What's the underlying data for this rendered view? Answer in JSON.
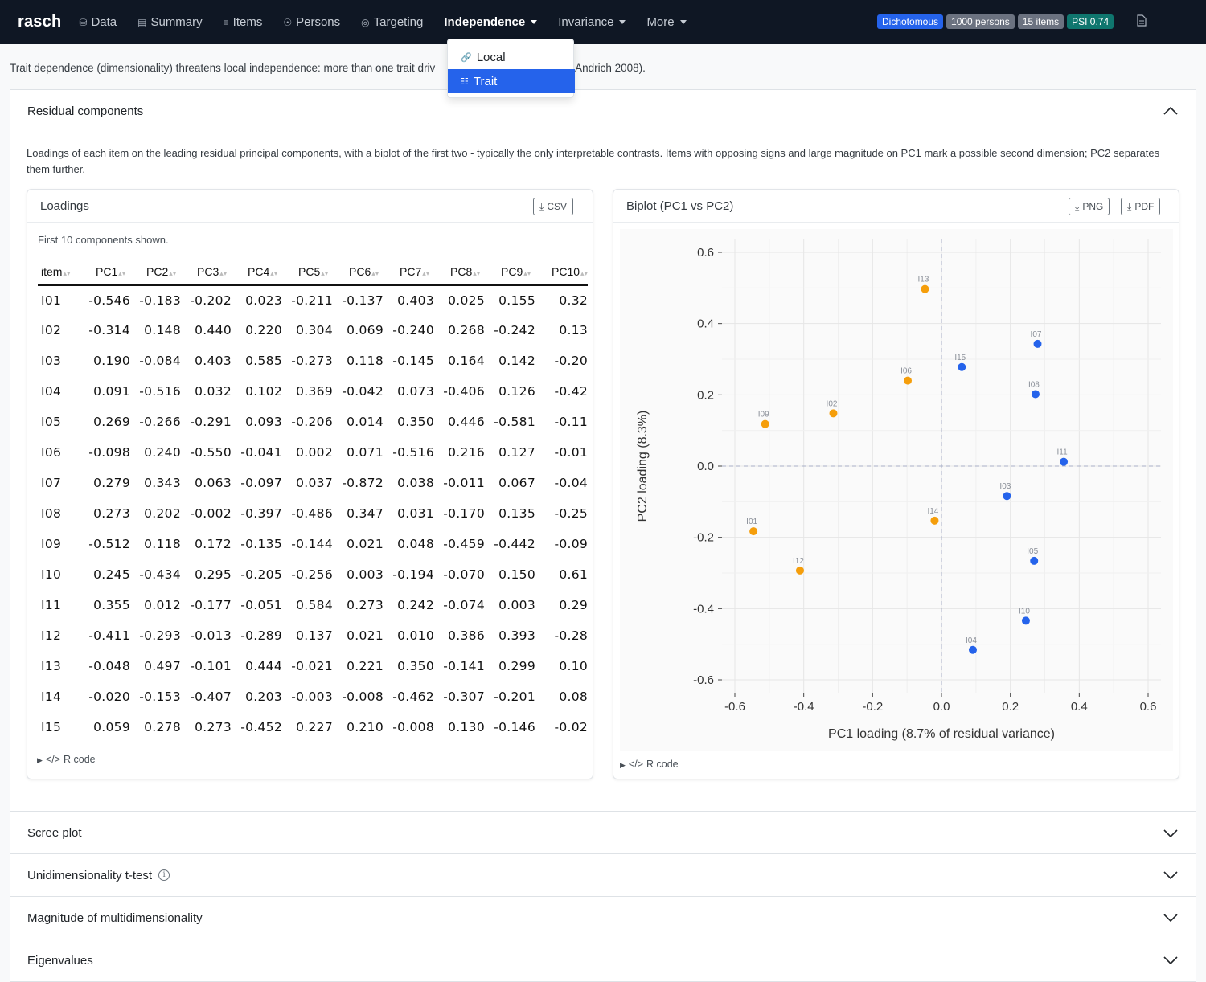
{
  "nav": {
    "brand": "rasch",
    "items": [
      {
        "label": "Data",
        "icon": "database-icon"
      },
      {
        "label": "Summary",
        "icon": "clipboard-icon"
      },
      {
        "label": "Items",
        "icon": "list-icon"
      },
      {
        "label": "Persons",
        "icon": "people-icon"
      },
      {
        "label": "Targeting",
        "icon": "target-icon"
      },
      {
        "label": "Independence",
        "active": true
      },
      {
        "label": "Invariance"
      },
      {
        "label": "More"
      }
    ],
    "badges": [
      {
        "label": "Dichotomous",
        "color": "#2563eb"
      },
      {
        "label": "1000 persons",
        "color": "#6b7280"
      },
      {
        "label": "15 items",
        "color": "#6b7280"
      },
      {
        "label": "PSI 0.74",
        "color": "#0f766e"
      }
    ]
  },
  "dropdown": {
    "items": [
      {
        "label": "Local",
        "icon": "link-icon",
        "selected": false
      },
      {
        "label": "Trait",
        "icon": "diagram-icon",
        "selected": true
      }
    ]
  },
  "intro": {
    "before": "Trait dependence (dimensionality) threatens local independence: more than one trait driv",
    "after": " & Andrich 2008)."
  },
  "residual": {
    "title": "Residual components",
    "description": "Loadings of each item on the leading residual principal components, with a biplot of the first two - typically the only interpretable contrasts. Items with opposing signs and large magnitude on PC1 mark a possible second dimension; PC2 separates them further.",
    "loadings": {
      "title": "Loadings",
      "csv_label": "CSV",
      "note": "First 10 components shown.",
      "columns": [
        "item",
        "PC1",
        "PC2",
        "PC3",
        "PC4",
        "PC5",
        "PC6",
        "PC7",
        "PC8",
        "PC9",
        "PC10"
      ],
      "rows": [
        [
          "I01",
          "-0.546",
          "-0.183",
          "-0.202",
          "0.023",
          "-0.211",
          "-0.137",
          "0.403",
          "0.025",
          "0.155",
          "0.32"
        ],
        [
          "I02",
          "-0.314",
          "0.148",
          "0.440",
          "0.220",
          "0.304",
          "0.069",
          "-0.240",
          "0.268",
          "-0.242",
          "0.13"
        ],
        [
          "I03",
          "0.190",
          "-0.084",
          "0.403",
          "0.585",
          "-0.273",
          "0.118",
          "-0.145",
          "0.164",
          "0.142",
          "-0.20"
        ],
        [
          "I04",
          "0.091",
          "-0.516",
          "0.032",
          "0.102",
          "0.369",
          "-0.042",
          "0.073",
          "-0.406",
          "0.126",
          "-0.42"
        ],
        [
          "I05",
          "0.269",
          "-0.266",
          "-0.291",
          "0.093",
          "-0.206",
          "0.014",
          "0.350",
          "0.446",
          "-0.581",
          "-0.11"
        ],
        [
          "I06",
          "-0.098",
          "0.240",
          "-0.550",
          "-0.041",
          "0.002",
          "0.071",
          "-0.516",
          "0.216",
          "0.127",
          "-0.01"
        ],
        [
          "I07",
          "0.279",
          "0.343",
          "0.063",
          "-0.097",
          "0.037",
          "-0.872",
          "0.038",
          "-0.011",
          "0.067",
          "-0.04"
        ],
        [
          "I08",
          "0.273",
          "0.202",
          "-0.002",
          "-0.397",
          "-0.486",
          "0.347",
          "0.031",
          "-0.170",
          "0.135",
          "-0.25"
        ],
        [
          "I09",
          "-0.512",
          "0.118",
          "0.172",
          "-0.135",
          "-0.144",
          "0.021",
          "0.048",
          "-0.459",
          "-0.442",
          "-0.09"
        ],
        [
          "I10",
          "0.245",
          "-0.434",
          "0.295",
          "-0.205",
          "-0.256",
          "0.003",
          "-0.194",
          "-0.070",
          "0.150",
          "0.61"
        ],
        [
          "I11",
          "0.355",
          "0.012",
          "-0.177",
          "-0.051",
          "0.584",
          "0.273",
          "0.242",
          "-0.074",
          "0.003",
          "0.29"
        ],
        [
          "I12",
          "-0.411",
          "-0.293",
          "-0.013",
          "-0.289",
          "0.137",
          "0.021",
          "0.010",
          "0.386",
          "0.393",
          "-0.28"
        ],
        [
          "I13",
          "-0.048",
          "0.497",
          "-0.101",
          "0.444",
          "-0.021",
          "0.221",
          "0.350",
          "-0.141",
          "0.299",
          "0.10"
        ],
        [
          "I14",
          "-0.020",
          "-0.153",
          "-0.407",
          "0.203",
          "-0.003",
          "-0.008",
          "-0.462",
          "-0.307",
          "-0.201",
          "0.08"
        ],
        [
          "I15",
          "0.059",
          "0.278",
          "0.273",
          "-0.452",
          "0.227",
          "0.210",
          "-0.008",
          "0.130",
          "-0.146",
          "-0.02"
        ]
      ],
      "rcode_label": "R code"
    },
    "biplot": {
      "title": "Biplot (PC1 vs PC2)",
      "png_label": "PNG",
      "pdf_label": "PDF",
      "rcode_label": "R code"
    }
  },
  "chart_data": {
    "type": "scatter",
    "title": "",
    "xlabel": "PC1 loading  (8.7% of residual variance)",
    "ylabel": "PC2 loading  (8.3%)",
    "xlim": [
      -0.6,
      0.6
    ],
    "ylim": [
      -0.6,
      0.6
    ],
    "xticks": [
      -0.6,
      -0.4,
      -0.2,
      0.0,
      0.2,
      0.4,
      0.6
    ],
    "yticks": [
      -0.6,
      -0.4,
      -0.2,
      0.0,
      0.2,
      0.4,
      0.6
    ],
    "grid": true,
    "colors": {
      "negative": "#f59e0b",
      "positive": "#2563eb"
    },
    "points": [
      {
        "label": "I01",
        "x": -0.546,
        "y": -0.183
      },
      {
        "label": "I02",
        "x": -0.314,
        "y": 0.148
      },
      {
        "label": "I03",
        "x": 0.19,
        "y": -0.084
      },
      {
        "label": "I04",
        "x": 0.091,
        "y": -0.516
      },
      {
        "label": "I05",
        "x": 0.269,
        "y": -0.266
      },
      {
        "label": "I06",
        "x": -0.098,
        "y": 0.24
      },
      {
        "label": "I07",
        "x": 0.279,
        "y": 0.343
      },
      {
        "label": "I08",
        "x": 0.273,
        "y": 0.202
      },
      {
        "label": "I09",
        "x": -0.512,
        "y": 0.118
      },
      {
        "label": "I10",
        "x": 0.245,
        "y": -0.434
      },
      {
        "label": "I11",
        "x": 0.355,
        "y": 0.012
      },
      {
        "label": "I12",
        "x": -0.411,
        "y": -0.293
      },
      {
        "label": "I13",
        "x": -0.048,
        "y": 0.497
      },
      {
        "label": "I14",
        "x": -0.02,
        "y": -0.153
      },
      {
        "label": "I15",
        "x": 0.059,
        "y": 0.278
      }
    ]
  },
  "sections": [
    {
      "label": "Scree plot",
      "info": false
    },
    {
      "label": "Unidimensionality t-test",
      "info": true
    },
    {
      "label": "Magnitude of multidimensionality",
      "info": false
    },
    {
      "label": "Eigenvalues",
      "info": false
    }
  ]
}
